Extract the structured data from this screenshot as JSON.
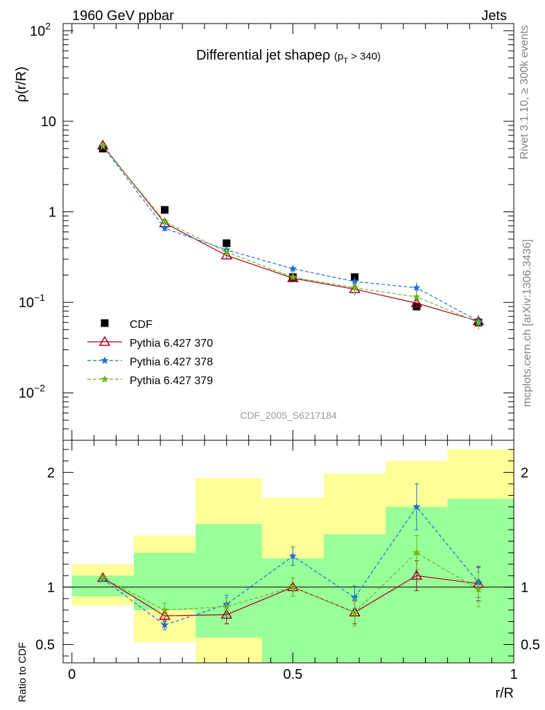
{
  "header": {
    "left": "1960 GeV ppbar",
    "right": "Jets"
  },
  "side_text": {
    "rivet": "Rivet 3.1.10, ≥ 300k events",
    "mcplots": "mcplots.cern.ch [arXiv:1306.3436]"
  },
  "analysis_id": "CDF_2005_S6217184",
  "chart_data": [
    {
      "type": "scatter",
      "panel": "main",
      "title": "Differential jet shapeρ",
      "title_sub": "(p",
      "title_sub_T": "T",
      "title_cut": " > 340)",
      "ylabel": "ρ(r/R)",
      "yscale": "log",
      "ylim": [
        0.003,
        120
      ],
      "xlim": [
        -0.02,
        1.0
      ],
      "yticks": [
        {
          "v": 0.01,
          "base": "10",
          "exp": "−2"
        },
        {
          "v": 0.1,
          "base": "10",
          "exp": "−1"
        },
        {
          "v": 1,
          "base": "1",
          "exp": ""
        },
        {
          "v": 10,
          "base": "10",
          "exp": ""
        },
        {
          "v": 100,
          "base": "10",
          "exp": "2"
        }
      ],
      "x": [
        0.07,
        0.21,
        0.35,
        0.5,
        0.64,
        0.78,
        0.92
      ],
      "series": [
        {
          "name": "CDF",
          "color": "#000000",
          "marker": "square",
          "line": "none",
          "values": [
            5.0,
            1.05,
            0.45,
            0.19,
            0.19,
            0.09,
            0.06
          ],
          "errors": [
            0.1,
            0.03,
            0.02,
            0.01,
            0.01,
            0.005,
            0.004
          ]
        },
        {
          "name": "Pythia 6.427 370",
          "color": "#a0001c",
          "marker": "triangle",
          "line": "solid",
          "values": [
            5.4,
            0.75,
            0.33,
            0.185,
            0.14,
            0.098,
            0.062
          ],
          "errors": [
            0.15,
            0.05,
            0.03,
            0.015,
            0.02,
            0.012,
            0.008
          ]
        },
        {
          "name": "Pythia 6.427 378",
          "color": "#1a6fd4",
          "marker": "star",
          "line": "dashed",
          "values": [
            5.3,
            0.66,
            0.38,
            0.235,
            0.17,
            0.145,
            0.062
          ],
          "errors": [
            0.15,
            0.05,
            0.03,
            0.02,
            0.02,
            0.02,
            0.01
          ]
        },
        {
          "name": "Pythia 6.427 379",
          "color": "#6cb61a",
          "marker": "star",
          "line": "dashed",
          "values": [
            5.35,
            0.78,
            0.36,
            0.19,
            0.145,
            0.115,
            0.06
          ],
          "errors": [
            0.15,
            0.05,
            0.03,
            0.015,
            0.025,
            0.015,
            0.01
          ]
        }
      ]
    },
    {
      "type": "scatter",
      "panel": "ratio",
      "ylabel": "Ratio to CDF",
      "xlabel": "r/R",
      "ylim": [
        0.34,
        2.28
      ],
      "xlim": [
        -0.02,
        1.0
      ],
      "yticks": [
        0.5,
        1,
        2
      ],
      "xticks": [
        {
          "v": 0,
          "label": "0"
        },
        {
          "v": 0.5,
          "label": "0.5"
        },
        {
          "v": 1,
          "label": "1"
        }
      ],
      "bands": {
        "edges": [
          0.0,
          0.14,
          0.28,
          0.43,
          0.57,
          0.71,
          0.85,
          1.0
        ],
        "yellow_low": [
          0.84,
          0.52,
          0.2,
          0.72,
          0.51,
          0.38,
          0.2
        ],
        "yellow_high": [
          1.2,
          1.45,
          1.95,
          1.78,
          1.99,
          2.1,
          2.2
        ],
        "green_low": [
          0.92,
          0.8,
          0.56,
          0.2,
          0.2,
          0.2,
          0.2
        ],
        "green_high": [
          1.1,
          1.3,
          1.55,
          1.25,
          1.46,
          1.7,
          1.77
        ],
        "yellow_color": "#ffff99",
        "green_color": "#99ff99"
      },
      "x": [
        0.07,
        0.21,
        0.35,
        0.5,
        0.64,
        0.78,
        0.92
      ],
      "series": [
        {
          "name": "Pythia 6.427 370",
          "values": [
            1.08,
            0.75,
            0.76,
            1.0,
            0.78,
            1.1,
            1.03
          ],
          "errors": [
            0.02,
            0.05,
            0.08,
            0.08,
            0.1,
            0.13,
            0.15
          ]
        },
        {
          "name": "Pythia 6.427 378",
          "values": [
            1.07,
            0.67,
            0.85,
            1.27,
            0.91,
            1.7,
            1.04
          ],
          "errors": [
            0.02,
            0.04,
            0.08,
            0.08,
            0.1,
            0.2,
            0.13
          ]
        },
        {
          "name": "Pythia 6.427 379",
          "values": [
            1.08,
            0.8,
            0.83,
            1.0,
            0.78,
            1.3,
            0.98
          ],
          "errors": [
            0.02,
            0.06,
            0.08,
            0.08,
            0.12,
            0.15,
            0.15
          ]
        }
      ]
    }
  ]
}
